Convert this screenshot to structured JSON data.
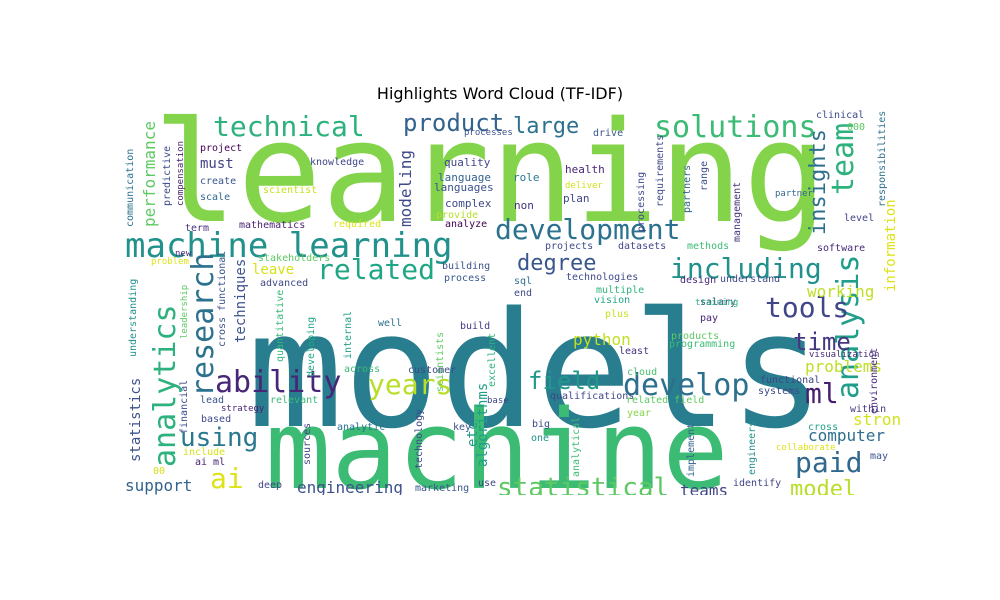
{
  "title": "Highlights Word Cloud (TF-IDF)",
  "words": [
    {
      "text": "learning",
      "c": "#84d44b"
    },
    {
      "text": "models",
      "c": "#287d8e"
    },
    {
      "text": "machine",
      "c": "#3cbb75"
    },
    {
      "text": "machine learning",
      "c": "#21918c"
    },
    {
      "text": "technical",
      "c": "#2db27d"
    },
    {
      "text": "product",
      "c": "#33638d"
    },
    {
      "text": "large",
      "c": "#2c728e"
    },
    {
      "text": "solutions",
      "c": "#3cbb75"
    },
    {
      "text": "team",
      "c": "#2db27d"
    },
    {
      "text": "development",
      "c": "#2c728e"
    },
    {
      "text": "including",
      "c": "#21918c"
    },
    {
      "text": "analysis",
      "c": "#1f9e89"
    },
    {
      "text": "related",
      "c": "#21a685"
    },
    {
      "text": "degree",
      "c": "#39568c"
    },
    {
      "text": "analytics",
      "c": "#2db27d"
    },
    {
      "text": "research",
      "c": "#2c728e"
    },
    {
      "text": "insights",
      "c": "#2d708e"
    },
    {
      "text": "tools",
      "c": "#404688"
    },
    {
      "text": "ability",
      "c": "#482677"
    },
    {
      "text": "years",
      "c": "#b8de29"
    },
    {
      "text": "field",
      "c": "#1f988b"
    },
    {
      "text": "develop",
      "c": "#2d708e"
    },
    {
      "text": "ml",
      "c": "#481f70"
    },
    {
      "text": "time",
      "c": "#453781"
    },
    {
      "text": "using",
      "c": "#2a788e"
    },
    {
      "text": "ai",
      "c": "#dde318"
    },
    {
      "text": "paid",
      "c": "#31688e"
    },
    {
      "text": "statistical",
      "c": "#5ec962"
    },
    {
      "text": "model",
      "c": "#b8de29"
    },
    {
      "text": "teams",
      "c": "#3f4788"
    },
    {
      "text": "engineering",
      "c": "#3b528b"
    },
    {
      "text": "support",
      "c": "#33638d"
    },
    {
      "text": "performance",
      "c": "#5ec962"
    },
    {
      "text": "must",
      "c": "#414487"
    },
    {
      "text": "modeling",
      "c": "#3e4a89"
    },
    {
      "text": "python",
      "c": "#c2df23"
    },
    {
      "text": "working",
      "c": "#bddf26"
    },
    {
      "text": "problems",
      "c": "#bddf26"
    },
    {
      "text": "strong",
      "c": "#d2e21b"
    },
    {
      "text": "computer",
      "c": "#2d708e"
    },
    {
      "text": "information",
      "c": "#dde318"
    },
    {
      "text": "leave",
      "c": "#d8e219"
    },
    {
      "text": "techniques",
      "c": "#3b528b"
    },
    {
      "text": "algorithms",
      "c": "#1f9e89"
    },
    {
      "text": "etc",
      "c": "#1fa088"
    },
    {
      "text": "statistics",
      "c": "#3b528b"
    },
    {
      "text": "quality",
      "c": "#404688"
    },
    {
      "text": "language",
      "c": "#33638d"
    },
    {
      "text": "languages",
      "c": "#3b528b"
    },
    {
      "text": "complex",
      "c": "#3e4a89"
    },
    {
      "text": "role",
      "c": "#2a788e"
    },
    {
      "text": "plan",
      "c": "#414487"
    },
    {
      "text": "non",
      "c": "#46327e"
    },
    {
      "text": "health",
      "c": "#482475"
    },
    {
      "text": "deliver",
      "c": "#d2e21b"
    },
    {
      "text": "knowledge",
      "c": "#3f4788"
    },
    {
      "text": "project",
      "c": "#440154"
    },
    {
      "text": "create",
      "c": "#39568c"
    },
    {
      "text": "scale",
      "c": "#31688e"
    },
    {
      "text": "scientist",
      "c": "#c8e020"
    },
    {
      "text": "provide",
      "c": "#b5de2b"
    },
    {
      "text": "analyze",
      "c": "#440154"
    },
    {
      "text": "required",
      "c": "#dde318"
    },
    {
      "text": "mathematics",
      "c": "#481f70"
    },
    {
      "text": "term",
      "c": "#46327e"
    },
    {
      "text": "stakeholders",
      "c": "#5ec962"
    },
    {
      "text": "new",
      "c": "#482878"
    },
    {
      "text": "advanced",
      "c": "#404688"
    },
    {
      "text": "building",
      "c": "#3b528b"
    },
    {
      "text": "process",
      "c": "#39568c"
    },
    {
      "text": "sql",
      "c": "#2d708e"
    },
    {
      "text": "end",
      "c": "#3e4a89"
    },
    {
      "text": "technologies",
      "c": "#3e4a89"
    },
    {
      "text": "multiple",
      "c": "#2db27d"
    },
    {
      "text": "vision",
      "c": "#21a685"
    },
    {
      "text": "plus",
      "c": "#c8e020"
    },
    {
      "text": "pay",
      "c": "#482475"
    },
    {
      "text": "salary",
      "c": "#3b528b"
    },
    {
      "text": "design",
      "c": "#472c7a"
    },
    {
      "text": "understand",
      "c": "#3e4a89"
    },
    {
      "text": "training",
      "c": "#2db27d"
    },
    {
      "text": "software",
      "c": "#482878"
    },
    {
      "text": "level",
      "c": "#414487"
    },
    {
      "text": "products",
      "c": "#5ec962"
    },
    {
      "text": "programming",
      "c": "#3cbb75"
    },
    {
      "text": "visualization",
      "c": "#472c7a"
    },
    {
      "text": "least",
      "c": "#46327e"
    },
    {
      "text": "build",
      "c": "#453781"
    },
    {
      "text": "well",
      "c": "#2c728e"
    },
    {
      "text": "excellent",
      "c": "#2db27d"
    },
    {
      "text": "scientists",
      "c": "#5ec962"
    },
    {
      "text": "internal",
      "c": "#1fa088"
    },
    {
      "text": "developing",
      "c": "#21a685"
    },
    {
      "text": "quantitative",
      "c": "#35b779"
    },
    {
      "text": "cross functional",
      "c": "#3b528b"
    },
    {
      "text": "functional",
      "c": "#404688"
    },
    {
      "text": "systems",
      "c": "#3e4a89"
    },
    {
      "text": "cross",
      "c": "#1fa088"
    },
    {
      "text": "within",
      "c": "#443983"
    },
    {
      "text": "environment",
      "c": "#482878"
    },
    {
      "text": "may",
      "c": "#3b528b"
    },
    {
      "text": "collaborate",
      "c": "#dde318"
    },
    {
      "text": "identify",
      "c": "#414487"
    },
    {
      "text": "marketing",
      "c": "#39568c"
    },
    {
      "text": "use",
      "c": "#414487"
    },
    {
      "text": "base",
      "c": "#3f4788"
    },
    {
      "text": "customer",
      "c": "#3e4a89"
    },
    {
      "text": "across",
      "c": "#3cbb75"
    },
    {
      "text": "qualifications",
      "c": "#3f4788"
    },
    {
      "text": "related field",
      "c": "#5ec962"
    },
    {
      "text": "cloud",
      "c": "#4ac16d"
    },
    {
      "text": "year",
      "c": "#86d549"
    },
    {
      "text": "key",
      "c": "#3b528b"
    },
    {
      "text": "one",
      "c": "#21918c"
    },
    {
      "text": "big",
      "c": "#3f4788"
    },
    {
      "text": "analytical",
      "c": "#3cbb75"
    },
    {
      "text": "implement",
      "c": "#33638d"
    },
    {
      "text": "engineers",
      "c": "#21918c"
    },
    {
      "text": "technology",
      "c": "#3f4788"
    },
    {
      "text": "sources",
      "c": "#414487"
    },
    {
      "text": "deep",
      "c": "#404688"
    },
    {
      "text": "analytic",
      "c": "#2c728e"
    },
    {
      "text": "lead",
      "c": "#3b528b"
    },
    {
      "text": "relevant",
      "c": "#3cbb75"
    },
    {
      "text": "strategy",
      "c": "#482475"
    },
    {
      "text": "based",
      "c": "#3e4a89"
    },
    {
      "text": "financial",
      "c": "#3e4a89"
    },
    {
      "text": "include",
      "c": "#d8e219"
    },
    {
      "text": "ai ml",
      "c": "#482475"
    },
    {
      "text": "00",
      "c": "#d8e219"
    },
    {
      "text": "leadership",
      "c": "#5ec962"
    },
    {
      "text": "understanding",
      "c": "#21918c"
    },
    {
      "text": "problem",
      "c": "#dde318"
    },
    {
      "text": "communication",
      "c": "#2c728e"
    },
    {
      "text": "predictive",
      "c": "#3e4a89"
    },
    {
      "text": "compensation",
      "c": "#481f70"
    },
    {
      "text": "processes",
      "c": "#3b528b"
    },
    {
      "text": "drive",
      "c": "#39568c"
    },
    {
      "text": "requirements",
      "c": "#3e4a89"
    },
    {
      "text": "processing",
      "c": "#3f4788"
    },
    {
      "text": "partners",
      "c": "#33638d"
    },
    {
      "text": "range",
      "c": "#3e4a89"
    },
    {
      "text": "management",
      "c": "#46327e"
    },
    {
      "text": "partner",
      "c": "#31688e"
    },
    {
      "text": "clinical",
      "c": "#3e4a89"
    },
    {
      "text": "000",
      "c": "#5ec962"
    },
    {
      "text": "responsibilities",
      "c": "#2c728e"
    },
    {
      "text": "projects",
      "c": "#3e4a89"
    },
    {
      "text": "datasets",
      "c": "#404688"
    },
    {
      "text": "methods",
      "c": "#3cbb75"
    }
  ]
}
